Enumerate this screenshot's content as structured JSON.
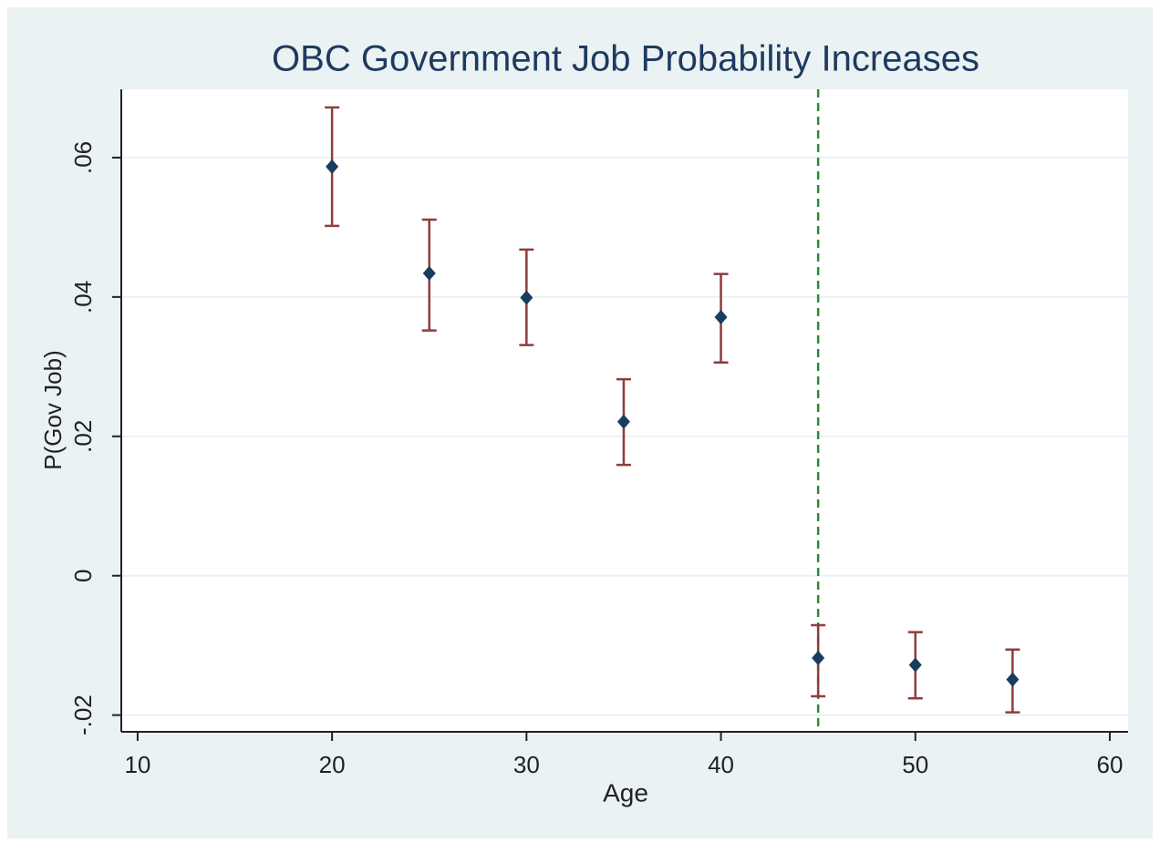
{
  "chart_data": {
    "type": "scatter",
    "title": "OBC Government Job Probability Increases",
    "x_label": "Age",
    "y_label": "P(Gov Job)",
    "x": [
      20,
      25,
      30,
      35,
      40,
      45,
      50,
      55
    ],
    "values": [
      0.0587,
      0.0434,
      0.0399,
      0.0221,
      0.0371,
      -0.0118,
      -0.0128,
      -0.0149
    ],
    "lower": [
      0.0502,
      0.0352,
      0.0331,
      0.0159,
      0.0306,
      -0.0173,
      -0.0176,
      -0.0196
    ],
    "upper": [
      0.0672,
      0.0511,
      0.0468,
      0.0282,
      0.0433,
      -0.0071,
      -0.0081,
      -0.0106
    ],
    "color": "#1a3c5e",
    "error_color": "#8f3c3c",
    "xlim": [
      9.16,
      60.94
    ],
    "ylim": [
      -0.0224,
      0.0698
    ],
    "xticks": [
      10,
      20,
      30,
      40,
      50,
      60
    ],
    "yticks": [
      {
        "value": -0.02,
        "label": "-.02"
      },
      0,
      {
        "value": 0.02,
        "label": ".02"
      },
      {
        "value": 0.04,
        "label": ".04"
      },
      {
        "value": 0.06,
        "label": ".06"
      }
    ],
    "grid": true,
    "vline": {
      "x": 45,
      "color": "#2e8b2e",
      "dashed": true
    }
  }
}
